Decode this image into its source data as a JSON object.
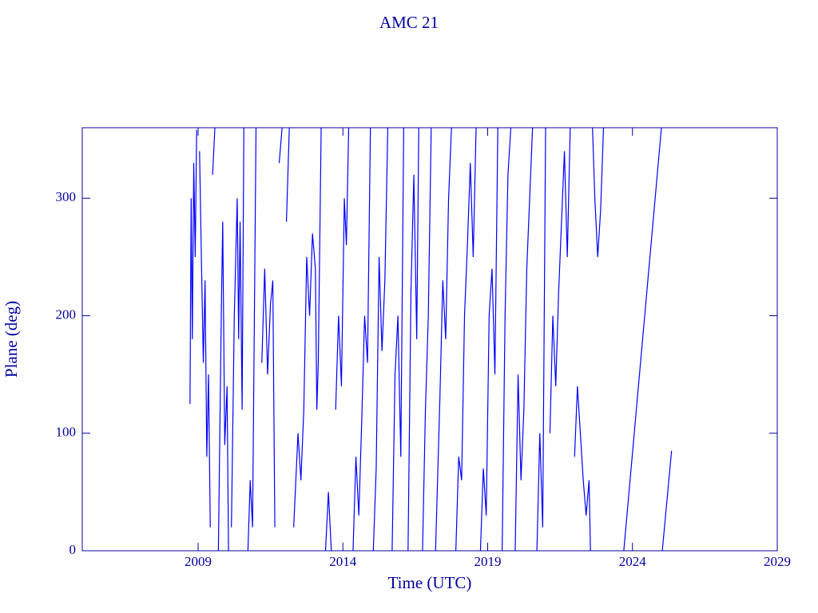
{
  "chart_data": {
    "type": "line",
    "title": "AMC 21",
    "x_label": "Time (UTC)",
    "y_label": "Plane (deg)",
    "x": [
      2008.72,
      2008.76,
      2008.8,
      2008.85,
      2008.9,
      2008.95,
      2009.0,
      2009.05,
      2009.12,
      2009.18,
      2009.24,
      2009.3,
      2009.36,
      2009.42,
      2009.46,
      2009.5,
      2009.58,
      2009.62,
      2009.7,
      2009.8,
      2009.85,
      2009.92,
      2010.0,
      2010.05,
      2010.08,
      2010.15,
      2010.25,
      2010.35,
      2010.4,
      2010.45,
      2010.52,
      2010.58,
      2010.62,
      2010.72,
      2010.8,
      2010.88,
      2011.0,
      2011.05,
      2011.2,
      2011.3,
      2011.4,
      2011.5,
      2011.58,
      2011.65,
      2011.7,
      2011.8,
      2011.9,
      2011.95,
      2012.05,
      2012.15,
      2012.2,
      2012.3,
      2012.45,
      2012.55,
      2012.65,
      2012.75,
      2012.85,
      2012.95,
      2013.05,
      2013.1,
      2013.15,
      2013.25,
      2013.3,
      2013.4,
      2013.5,
      2013.6,
      2013.65,
      2013.75,
      2013.85,
      2013.95,
      2014.05,
      2014.12,
      2014.2,
      2014.25,
      2014.35,
      2014.45,
      2014.55,
      2014.65,
      2014.75,
      2014.85,
      2014.95,
      2015.0,
      2015.05,
      2015.15,
      2015.25,
      2015.35,
      2015.45,
      2015.55,
      2015.6,
      2015.7,
      2015.8,
      2015.9,
      2016.0,
      2016.1,
      2016.15,
      2016.25,
      2016.35,
      2016.45,
      2016.55,
      2016.62,
      2016.66,
      2016.75,
      2016.85,
      2016.95,
      2017.05,
      2017.1,
      2017.2,
      2017.35,
      2017.45,
      2017.55,
      2017.65,
      2017.75,
      2017.8,
      2017.9,
      2018.0,
      2018.1,
      2018.2,
      2018.3,
      2018.4,
      2018.5,
      2018.6,
      2018.65,
      2018.75,
      2018.85,
      2018.95,
      2019.05,
      2019.15,
      2019.25,
      2019.35,
      2019.4,
      2019.5,
      2019.6,
      2019.7,
      2019.8,
      2019.85,
      2019.95,
      2020.05,
      2020.15,
      2020.25,
      2020.35,
      2020.45,
      2020.55,
      2020.6,
      2020.7,
      2020.8,
      2020.9,
      2021.0,
      2021.05,
      2021.15,
      2021.25,
      2021.35,
      2021.45,
      2021.55,
      2021.65,
      2021.75,
      2021.85,
      2021.9,
      2022.0,
      2022.1,
      2022.2,
      2022.3,
      2022.4,
      2022.5,
      2022.55,
      2022.6,
      2022.62,
      2022.7,
      2022.8,
      2022.9,
      2023.0,
      2023.05,
      2023.7,
      2025.0,
      2025.02,
      2025.03,
      2025.35
    ],
    "series": [
      {
        "color": "#0000ff",
        "values": [
          125,
          300,
          180,
          330,
          250,
          358,
          null,
          340,
          240,
          160,
          230,
          80,
          150,
          20,
          null,
          320,
          360,
          null,
          0,
          200,
          280,
          90,
          140,
          0,
          null,
          20,
          200,
          300,
          180,
          280,
          120,
          360,
          null,
          0,
          60,
          20,
          360,
          null,
          160,
          240,
          150,
          210,
          230,
          20,
          null,
          330,
          360,
          null,
          280,
          360,
          null,
          20,
          100,
          60,
          120,
          250,
          200,
          270,
          240,
          120,
          160,
          360,
          null,
          0,
          50,
          0,
          null,
          120,
          200,
          140,
          300,
          260,
          360,
          null,
          0,
          80,
          30,
          110,
          200,
          160,
          360,
          null,
          0,
          70,
          250,
          170,
          230,
          360,
          null,
          0,
          150,
          200,
          80,
          360,
          null,
          0,
          220,
          320,
          180,
          360,
          null,
          0,
          120,
          200,
          360,
          null,
          0,
          130,
          230,
          180,
          300,
          360,
          null,
          0,
          80,
          60,
          200,
          260,
          330,
          250,
          360,
          null,
          0,
          70,
          30,
          200,
          240,
          150,
          360,
          null,
          0,
          200,
          320,
          360,
          null,
          0,
          150,
          60,
          120,
          240,
          300,
          360,
          null,
          0,
          100,
          20,
          360,
          null,
          100,
          200,
          140,
          220,
          280,
          340,
          250,
          360,
          null,
          80,
          140,
          100,
          60,
          30,
          60,
          0,
          null,
          360,
          300,
          250,
          290,
          360,
          null,
          0,
          360,
          null,
          0,
          85
        ]
      }
    ],
    "xlim": [
      2005,
      2029
    ],
    "xticks": [
      2009,
      2014,
      2019,
      2024,
      2029
    ],
    "ylim": [
      0,
      360
    ],
    "yticks": [
      0,
      100,
      200,
      300
    ],
    "axis_color": "#0000a0"
  }
}
